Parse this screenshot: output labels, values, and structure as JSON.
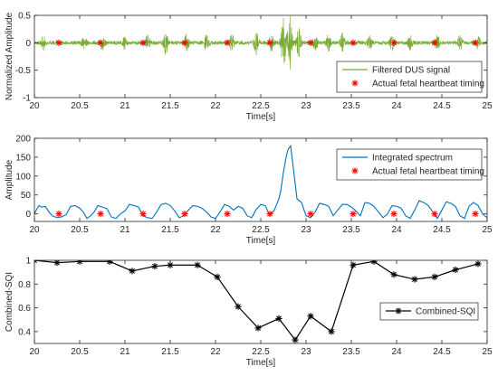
{
  "chart_data": [
    {
      "type": "line",
      "title": "",
      "xlabel": "Time[s]",
      "ylabel": "Normalized Amplitude",
      "xlim": [
        20,
        25
      ],
      "ylim": [
        -1,
        0.5
      ],
      "xticks": [
        20,
        20.5,
        21,
        21.5,
        22,
        22.5,
        23,
        23.5,
        24,
        24.5,
        25
      ],
      "xticklabels": [
        "20",
        "20.5",
        "21",
        "21.5",
        "22",
        "22.5",
        "23",
        "23.5",
        "24",
        "24.5",
        "25"
      ],
      "yticks": [
        -1,
        -0.5,
        0,
        0.5
      ],
      "yticklabels": [
        "-1",
        "-0.5",
        "0",
        "0.5"
      ],
      "legend_position": "lower-right",
      "series": [
        {
          "name": "Filtered DUS signal",
          "kind": "line",
          "color": "#77ac30",
          "bursts": [
            {
              "x": 20.1,
              "amp": 0.12
            },
            {
              "x": 20.55,
              "amp": 0.1
            },
            {
              "x": 20.75,
              "amp": 0.12
            },
            {
              "x": 21.0,
              "amp": 0.12
            },
            {
              "x": 21.25,
              "amp": 0.14
            },
            {
              "x": 21.45,
              "amp": 0.2
            },
            {
              "x": 21.68,
              "amp": 0.14
            },
            {
              "x": 21.9,
              "amp": 0.12
            },
            {
              "x": 22.18,
              "amp": 0.14
            },
            {
              "x": 22.45,
              "amp": 0.2
            },
            {
              "x": 22.62,
              "amp": 0.17
            },
            {
              "x": 22.75,
              "amp": 0.45
            },
            {
              "x": 22.82,
              "amp": 0.5
            },
            {
              "x": 22.92,
              "amp": 0.25
            },
            {
              "x": 23.1,
              "amp": 0.14
            },
            {
              "x": 23.25,
              "amp": 0.14
            },
            {
              "x": 23.4,
              "amp": 0.18
            },
            {
              "x": 23.7,
              "amp": 0.12
            },
            {
              "x": 23.95,
              "amp": 0.13
            },
            {
              "x": 24.15,
              "amp": 0.12
            },
            {
              "x": 24.45,
              "amp": 0.12
            },
            {
              "x": 24.7,
              "amp": 0.12
            },
            {
              "x": 24.9,
              "amp": 0.1
            }
          ],
          "noise_amp": 0.035
        },
        {
          "name": "Actual fetal heartbeat timing",
          "kind": "marker",
          "color": "#ff0000",
          "x": [
            20.27,
            20.73,
            21.2,
            21.66,
            22.13,
            22.6,
            23.05,
            23.52,
            23.97,
            24.42,
            24.87
          ],
          "y": [
            0,
            0,
            0,
            0,
            0,
            0,
            0,
            0,
            0,
            0,
            0
          ]
        }
      ]
    },
    {
      "type": "line",
      "title": "",
      "xlabel": "Time[s]",
      "ylabel": "Amplitude",
      "xlim": [
        20,
        25
      ],
      "ylim": [
        -20,
        200
      ],
      "xticks": [
        20,
        20.5,
        21,
        21.5,
        22,
        22.5,
        23,
        23.5,
        24,
        24.5,
        25
      ],
      "xticklabels": [
        "20",
        "20.5",
        "21",
        "21.5",
        "22",
        "22.5",
        "23",
        "23.5",
        "24",
        "24.5",
        "25"
      ],
      "yticks": [
        0,
        50,
        100,
        150,
        200
      ],
      "yticklabels": [
        "0",
        "50",
        "100",
        "150",
        "200"
      ],
      "legend_position": "upper-right",
      "series": [
        {
          "name": "Integrated spectrum",
          "kind": "line",
          "color": "#0072bd",
          "x": [
            20.0,
            20.02,
            20.05,
            20.08,
            20.12,
            20.16,
            20.2,
            20.25,
            20.3,
            20.35,
            20.4,
            20.45,
            20.5,
            20.54,
            20.58,
            20.62,
            20.66,
            20.7,
            20.75,
            20.8,
            20.85,
            20.9,
            20.95,
            21.0,
            21.05,
            21.1,
            21.15,
            21.2,
            21.25,
            21.3,
            21.35,
            21.4,
            21.45,
            21.5,
            21.55,
            21.6,
            21.65,
            21.7,
            21.75,
            21.8,
            21.85,
            21.9,
            21.95,
            22.0,
            22.05,
            22.1,
            22.15,
            22.2,
            22.25,
            22.3,
            22.35,
            22.4,
            22.45,
            22.5,
            22.55,
            22.6,
            22.65,
            22.7,
            22.72,
            22.75,
            22.78,
            22.8,
            22.83,
            22.86,
            22.9,
            22.95,
            23.0,
            23.05,
            23.1,
            23.15,
            23.2,
            23.25,
            23.3,
            23.35,
            23.4,
            23.45,
            23.5,
            23.55,
            23.6,
            23.65,
            23.7,
            23.75,
            23.8,
            23.85,
            23.9,
            23.95,
            24.0,
            24.05,
            24.1,
            24.15,
            24.2,
            24.25,
            24.3,
            24.35,
            24.4,
            24.45,
            24.5,
            24.55,
            24.6,
            24.65,
            24.7,
            24.75,
            24.8,
            24.85,
            24.9,
            24.95,
            25.0
          ],
          "y": [
            0,
            10,
            22,
            18,
            20,
            5,
            -5,
            -10,
            -8,
            -2,
            20,
            22,
            15,
            5,
            -12,
            -5,
            5,
            22,
            18,
            14,
            -8,
            -12,
            0,
            8,
            25,
            22,
            18,
            -5,
            -10,
            -12,
            5,
            25,
            28,
            22,
            8,
            -10,
            -5,
            10,
            22,
            20,
            15,
            5,
            -8,
            -12,
            5,
            25,
            20,
            10,
            20,
            15,
            -5,
            -10,
            12,
            25,
            22,
            -5,
            10,
            40,
            60,
            110,
            150,
            170,
            180,
            120,
            40,
            30,
            -5,
            -10,
            5,
            28,
            25,
            20,
            -5,
            10,
            25,
            25,
            18,
            8,
            -5,
            30,
            28,
            20,
            5,
            -10,
            0,
            22,
            20,
            15,
            -5,
            -12,
            10,
            35,
            30,
            22,
            5,
            -12,
            10,
            32,
            28,
            20,
            -5,
            -12,
            20,
            30,
            22,
            0,
            -10
          ]
        },
        {
          "name": "Actual fetal heartbeat timing",
          "kind": "marker",
          "color": "#ff0000",
          "x": [
            20.27,
            20.73,
            21.2,
            21.66,
            22.13,
            22.6,
            23.05,
            23.52,
            23.97,
            24.42,
            24.87
          ],
          "y": [
            0,
            0,
            0,
            0,
            0,
            0,
            0,
            0,
            0,
            0,
            0
          ]
        }
      ]
    },
    {
      "type": "line",
      "title": "",
      "xlabel": "Time[s]",
      "ylabel": "Combined-SQI",
      "xlim": [
        20,
        25
      ],
      "ylim": [
        0.3,
        1
      ],
      "xticks": [
        20,
        20.5,
        21,
        21.5,
        22,
        22.5,
        23,
        23.5,
        24,
        24.5,
        25
      ],
      "xticklabels": [
        "20",
        "20.5",
        "21",
        "21.5",
        "22",
        "22.5",
        "23",
        "23.5",
        "24",
        "24.5",
        "25"
      ],
      "yticks": [
        0.4,
        0.6,
        0.8,
        1
      ],
      "yticklabels": [
        "0.4",
        "0.6",
        "0.8",
        "1"
      ],
      "legend_position": "center-right",
      "series": [
        {
          "name": "Combined-SQI",
          "kind": "line-marker",
          "color": "#000000",
          "x": [
            20.0,
            20.25,
            20.5,
            20.83,
            21.08,
            21.33,
            21.5,
            21.8,
            22.02,
            22.25,
            22.47,
            22.7,
            22.88,
            23.05,
            23.28,
            23.52,
            23.75,
            23.97,
            24.2,
            24.42,
            24.65,
            24.9
          ],
          "y": [
            1.0,
            0.98,
            0.99,
            0.99,
            0.91,
            0.95,
            0.96,
            0.96,
            0.86,
            0.61,
            0.43,
            0.51,
            0.33,
            0.53,
            0.4,
            0.96,
            0.99,
            0.88,
            0.84,
            0.86,
            0.92,
            0.97
          ]
        }
      ]
    }
  ]
}
